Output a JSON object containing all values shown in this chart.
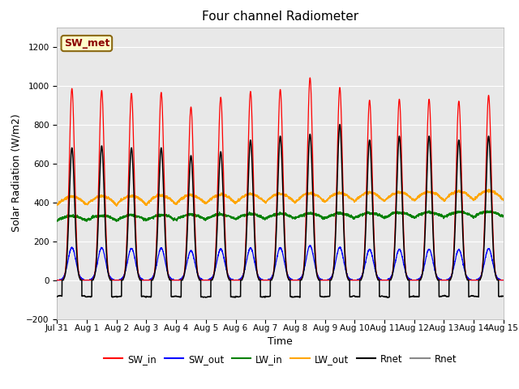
{
  "title": "Four channel Radiometer",
  "xlabel": "Time",
  "ylabel": "Solar Radiation (W/m2)",
  "ylim": [
    -200,
    1300
  ],
  "yticks": [
    -200,
    0,
    200,
    400,
    600,
    800,
    1000,
    1200
  ],
  "fig_bg": "#ffffff",
  "plot_bg": "#e8e8e8",
  "grid_color": "#ffffff",
  "legend_entries": [
    "SW_in",
    "SW_out",
    "LW_in",
    "LW_out",
    "Rnet",
    "Rnet"
  ],
  "legend_colors": [
    "red",
    "blue",
    "green",
    "orange",
    "black",
    "#888888"
  ],
  "annotation_text": "SW_met",
  "annotation_bg": "#ffffcc",
  "annotation_border": "#8B6914",
  "n_days": 15,
  "xtick_labels": [
    "Jul 31",
    "Aug 1",
    "Aug 2",
    "Aug 3",
    "Aug 4",
    "Aug 5",
    "Aug 6",
    "Aug 7",
    "Aug 8",
    "Aug 9",
    "Aug 10",
    "Aug 11",
    "Aug 12",
    "Aug 13",
    "Aug 14",
    "Aug 15"
  ],
  "sw_in_peaks": [
    985,
    975,
    960,
    965,
    890,
    940,
    970,
    980,
    1040,
    990,
    925,
    930,
    930,
    920,
    950
  ],
  "rnet_peaks": [
    680,
    690,
    680,
    680,
    640,
    660,
    720,
    740,
    750,
    800,
    720,
    740,
    740,
    720,
    740
  ]
}
